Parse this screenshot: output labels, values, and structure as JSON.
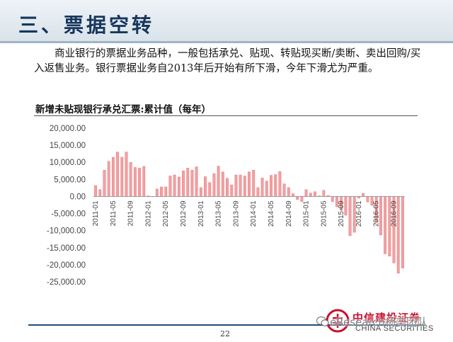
{
  "slide": {
    "section_title": "三、票据空转",
    "intro": "商业银行的票据业务品种，一般包括承兑、贴现、转贴现买断/卖断、卖出回购/买入返售业务。银行票据业务自2013年后开始有所下滑，今年下滑尤为严重。",
    "chart_heading": "新增未贴现银行承兑汇票:累计值（每年）",
    "page_number": "22"
  },
  "logo": {
    "name_cn": "中信建投证券",
    "name_en": "CHINA SECURITIES",
    "watermark": "eResearch杨奕团队",
    "brand_color": "#c8102e"
  },
  "colors": {
    "bar": "#f2a0a2",
    "bar_edge": "#e46a6e",
    "header_text": "#16365c"
  },
  "chart_data": {
    "type": "bar",
    "title": "新增未贴现银行承兑汇票:累计值（每年）",
    "xlabel": "",
    "ylabel": "",
    "ylim": [
      -25000,
      20000
    ],
    "yticks": [
      20000,
      15000,
      10000,
      5000,
      0,
      -5000,
      -10000,
      -15000,
      -20000,
      -25000
    ],
    "ytick_labels": [
      "20,000.00",
      "15,000.00",
      "10,000.00",
      "5,000.00",
      "0.00",
      "-5,000.00",
      "-10,000.00",
      "-15,000.00",
      "-20,000.00",
      "-25,000.00"
    ],
    "xtick_labels": [
      "2011-01",
      "2011-05",
      "2011-09",
      "2012-01",
      "2012-05",
      "2012-09",
      "2013-01",
      "2013-05",
      "2013-09",
      "2014-01",
      "2014-05",
      "2014-09",
      "2015-01",
      "2015-05",
      "2015-09",
      "2016-01",
      "2016-05",
      "2016-09"
    ],
    "categories": [
      "2011-01",
      "2011-02",
      "2011-03",
      "2011-04",
      "2011-05",
      "2011-06",
      "2011-07",
      "2011-08",
      "2011-09",
      "2011-10",
      "2011-11",
      "2011-12",
      "2012-01",
      "2012-02",
      "2012-03",
      "2012-04",
      "2012-05",
      "2012-06",
      "2012-07",
      "2012-08",
      "2012-09",
      "2012-10",
      "2012-11",
      "2012-12",
      "2013-01",
      "2013-02",
      "2013-03",
      "2013-04",
      "2013-05",
      "2013-06",
      "2013-07",
      "2013-08",
      "2013-09",
      "2013-10",
      "2013-11",
      "2013-12",
      "2014-01",
      "2014-02",
      "2014-03",
      "2014-04",
      "2014-05",
      "2014-06",
      "2014-07",
      "2014-08",
      "2014-09",
      "2014-10",
      "2014-11",
      "2014-12",
      "2015-01",
      "2015-02",
      "2015-03",
      "2015-04",
      "2015-05",
      "2015-06",
      "2015-07",
      "2015-08",
      "2015-09",
      "2015-10",
      "2015-11",
      "2015-12",
      "2016-01",
      "2016-02",
      "2016-03",
      "2016-04",
      "2016-05",
      "2016-06",
      "2016-07",
      "2016-08",
      "2016-09",
      "2016-10",
      "2016-11"
    ],
    "values": [
      3200,
      2000,
      7700,
      10300,
      11500,
      13000,
      11500,
      13000,
      10000,
      8500,
      8300,
      8800,
      200,
      0,
      2200,
      2800,
      2800,
      6000,
      6300,
      5700,
      7500,
      8300,
      7700,
      8700,
      2600,
      5800,
      4100,
      6700,
      8900,
      7200,
      5300,
      3400,
      6300,
      6300,
      6000,
      7200,
      7700,
      2600,
      5400,
      4500,
      6200,
      6400,
      7300,
      3700,
      2600,
      800,
      -900,
      -1500,
      2000,
      1000,
      1400,
      200,
      1800,
      300,
      -1500,
      -3000,
      -4000,
      -5500,
      -11500,
      -10500,
      -500,
      900,
      -1600,
      -2600,
      -7500,
      -11300,
      -16800,
      -17500,
      -19500,
      -22500,
      -21000
    ]
  }
}
